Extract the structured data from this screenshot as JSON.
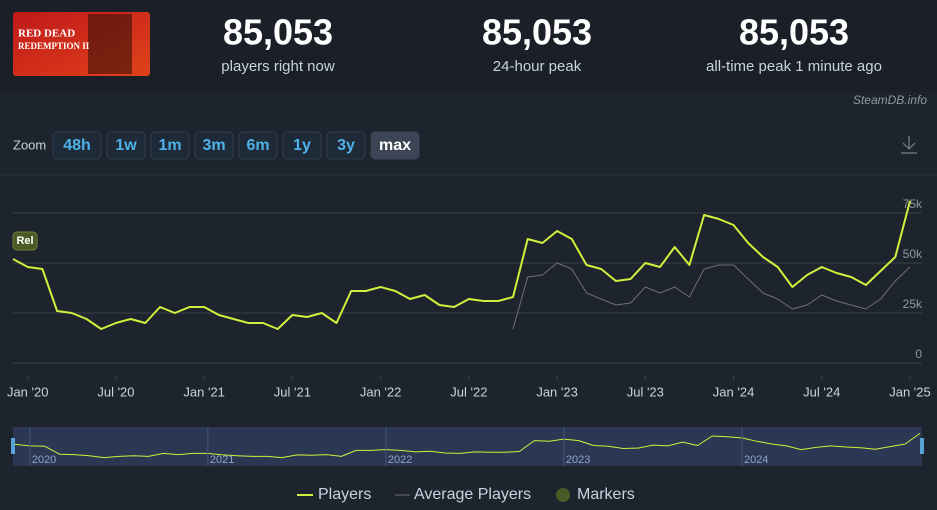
{
  "header": {
    "logo_lines": [
      "RED DEAD",
      "REDEMPTION II"
    ],
    "stats": [
      {
        "value": "85,053",
        "label": "players right now"
      },
      {
        "value": "85,053",
        "label": "24-hour peak"
      },
      {
        "value": "85,053",
        "label": "all-time peak 1 minute ago"
      }
    ],
    "source": "SteamDB.info"
  },
  "zoom": {
    "label": "Zoom",
    "buttons": [
      "48h",
      "1w",
      "1m",
      "3m",
      "6m",
      "1y",
      "3y",
      "max"
    ],
    "active": "max"
  },
  "chart_data": {
    "type": "line",
    "x": [
      "2019-12",
      "2020-01",
      "2020-02",
      "2020-03",
      "2020-04",
      "2020-05",
      "2020-06",
      "2020-07",
      "2020-08",
      "2020-09",
      "2020-10",
      "2020-11",
      "2020-12",
      "2021-01",
      "2021-02",
      "2021-03",
      "2021-04",
      "2021-05",
      "2021-06",
      "2021-07",
      "2021-08",
      "2021-09",
      "2021-10",
      "2021-11",
      "2021-12",
      "2022-01",
      "2022-02",
      "2022-03",
      "2022-04",
      "2022-05",
      "2022-06",
      "2022-07",
      "2022-08",
      "2022-09",
      "2022-10",
      "2022-11",
      "2022-12",
      "2023-01",
      "2023-02",
      "2023-03",
      "2023-04",
      "2023-05",
      "2023-06",
      "2023-07",
      "2023-08",
      "2023-09",
      "2023-10",
      "2023-11",
      "2023-12",
      "2024-01",
      "2024-02",
      "2024-03",
      "2024-04",
      "2024-05",
      "2024-06",
      "2024-07",
      "2024-08",
      "2024-09",
      "2024-10",
      "2024-11",
      "2024-12",
      "2025-01"
    ],
    "series": [
      {
        "name": "Players",
        "color": "#d2ef3c",
        "values": [
          52000,
          48000,
          47000,
          26000,
          25000,
          22000,
          17000,
          20000,
          22000,
          20000,
          28000,
          25000,
          28000,
          28000,
          24000,
          22000,
          20000,
          20000,
          17000,
          24000,
          23000,
          25000,
          20000,
          36000,
          36000,
          38000,
          36000,
          32000,
          34000,
          29000,
          28000,
          32000,
          31000,
          31000,
          33000,
          62000,
          60000,
          66000,
          62000,
          49000,
          47000,
          41000,
          42000,
          50000,
          48000,
          58000,
          49000,
          74000,
          72000,
          69000,
          60000,
          53000,
          48000,
          38000,
          44000,
          48000,
          45000,
          43000,
          39000,
          46000,
          53000,
          81000
        ]
      },
      {
        "name": "Average Players",
        "color": "#6c7075",
        "values": [
          null,
          null,
          null,
          null,
          null,
          null,
          null,
          null,
          null,
          null,
          null,
          null,
          null,
          null,
          null,
          null,
          null,
          null,
          null,
          null,
          null,
          null,
          null,
          null,
          null,
          null,
          null,
          null,
          null,
          null,
          null,
          null,
          null,
          null,
          17000,
          43000,
          44000,
          50000,
          47000,
          35000,
          32000,
          29000,
          30000,
          38000,
          35000,
          38000,
          33000,
          47000,
          49000,
          49000,
          42000,
          35000,
          32000,
          27000,
          29000,
          34000,
          31000,
          29000,
          27000,
          32000,
          41000,
          48000
        ]
      }
    ],
    "markers": {
      "name": "Markers",
      "color": "#4a5a26",
      "items": [
        {
          "x": "2019-12",
          "label": "Rel"
        }
      ]
    },
    "xlim": [
      "2019-12",
      "2025-01"
    ],
    "xticks": [
      {
        "value": "2020-01",
        "label": "Jan '20"
      },
      {
        "value": "2020-07",
        "label": "Jul '20"
      },
      {
        "value": "2021-01",
        "label": "Jan '21"
      },
      {
        "value": "2021-07",
        "label": "Jul '21"
      },
      {
        "value": "2022-01",
        "label": "Jan '22"
      },
      {
        "value": "2022-07",
        "label": "Jul '22"
      },
      {
        "value": "2023-01",
        "label": "Jan '23"
      },
      {
        "value": "2023-07",
        "label": "Jul '23"
      },
      {
        "value": "2024-01",
        "label": "Jan '24"
      },
      {
        "value": "2024-07",
        "label": "Jul '24"
      },
      {
        "value": "2025-01",
        "label": "Jan '25"
      }
    ],
    "ylim": [
      0,
      90000
    ],
    "yticks": [
      0,
      {
        "value": 25000,
        "label": "25k"
      },
      {
        "value": 50000,
        "label": "50k"
      },
      {
        "value": 75000,
        "label": "75k"
      }
    ],
    "grid": true,
    "navigator_ticks": [
      {
        "value": "2020-01",
        "label": "2020"
      },
      {
        "value": "2021-01",
        "label": "2021"
      },
      {
        "value": "2022-01",
        "label": "2022"
      },
      {
        "value": "2023-01",
        "label": "2023"
      },
      {
        "value": "2024-01",
        "label": "2024"
      }
    ]
  }
}
